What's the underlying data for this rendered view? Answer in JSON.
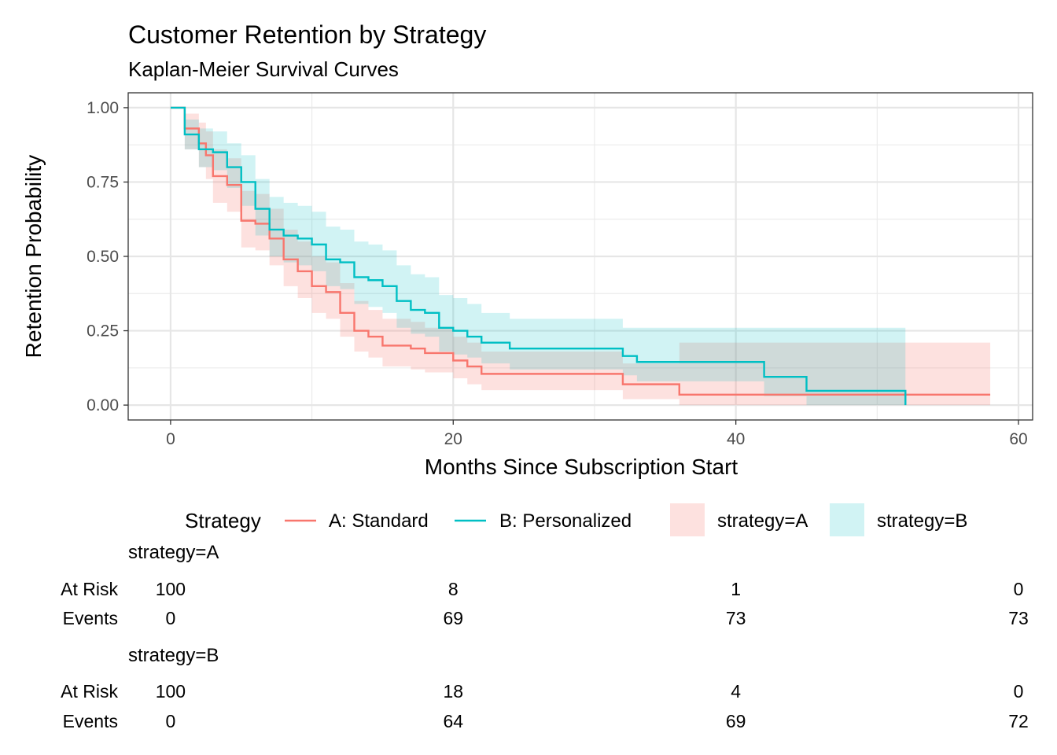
{
  "chart_data": {
    "type": "line",
    "subtype": "kaplan-meier step",
    "title": "Customer Retention by Strategy",
    "subtitle": "Kaplan-Meier Survival Curves",
    "xlabel": "Months Since Subscription Start",
    "ylabel": "Retention Probability",
    "xlim": [
      -3,
      61
    ],
    "ylim": [
      -0.05,
      1.05
    ],
    "xticks": [
      0,
      20,
      40,
      60
    ],
    "xtick_labels": [
      "0",
      "20",
      "40",
      "60"
    ],
    "yticks": [
      0,
      0.25,
      0.5,
      0.75,
      1.0
    ],
    "ytick_labels": [
      "0.00",
      "0.25",
      "0.50",
      "0.75",
      "1.00"
    ],
    "grid": true,
    "legend_position": "bottom",
    "legend": {
      "title": "Strategy",
      "lines": [
        "A: Standard",
        "B: Personalized"
      ],
      "fills": [
        "strategy=A",
        "strategy=B"
      ]
    },
    "series": [
      {
        "name": "A: Standard",
        "color": "#f8766d",
        "x": [
          0,
          1,
          2,
          2.5,
          3,
          4,
          5,
          6,
          7,
          8,
          9,
          10,
          11,
          12,
          13,
          14,
          15,
          17,
          18,
          20,
          21,
          22,
          24,
          30,
          32,
          36,
          40,
          45,
          50,
          58
        ],
        "y": [
          1.0,
          0.93,
          0.88,
          0.84,
          0.77,
          0.74,
          0.62,
          0.61,
          0.56,
          0.49,
          0.45,
          0.4,
          0.38,
          0.31,
          0.25,
          0.23,
          0.2,
          0.19,
          0.175,
          0.15,
          0.13,
          0.105,
          0.105,
          0.105,
          0.07,
          0.035,
          0.035,
          0.035,
          0.035,
          0.035
        ],
        "lower": [
          1.0,
          0.86,
          0.8,
          0.76,
          0.68,
          0.65,
          0.53,
          0.52,
          0.47,
          0.4,
          0.36,
          0.31,
          0.29,
          0.23,
          0.18,
          0.16,
          0.13,
          0.12,
          0.11,
          0.09,
          0.07,
          0.05,
          0.05,
          0.05,
          0.02,
          0.0,
          0.0,
          0.0,
          0.0,
          0.0
        ],
        "upper": [
          1.0,
          0.98,
          0.95,
          0.92,
          0.86,
          0.83,
          0.72,
          0.71,
          0.66,
          0.59,
          0.55,
          0.5,
          0.48,
          0.41,
          0.35,
          0.32,
          0.29,
          0.28,
          0.26,
          0.23,
          0.21,
          0.18,
          0.18,
          0.18,
          0.14,
          0.21,
          0.21,
          0.21,
          0.21,
          0.21
        ]
      },
      {
        "name": "B: Personalized",
        "color": "#00bfc4",
        "x": [
          0,
          1,
          2,
          3,
          4,
          5,
          6,
          7,
          8,
          9,
          10,
          11,
          12,
          13,
          14,
          15,
          16,
          17,
          18,
          19,
          20,
          21,
          22,
          24,
          30,
          32,
          33,
          36,
          42,
          45,
          50,
          52
        ],
        "y": [
          1.0,
          0.91,
          0.86,
          0.85,
          0.8,
          0.75,
          0.66,
          0.59,
          0.57,
          0.56,
          0.54,
          0.49,
          0.48,
          0.43,
          0.42,
          0.4,
          0.35,
          0.32,
          0.31,
          0.26,
          0.25,
          0.23,
          0.21,
          0.19,
          0.19,
          0.165,
          0.145,
          0.145,
          0.095,
          0.048,
          0.048,
          0.0
        ],
        "lower": [
          1.0,
          0.86,
          0.8,
          0.79,
          0.73,
          0.67,
          0.57,
          0.5,
          0.48,
          0.47,
          0.45,
          0.4,
          0.39,
          0.34,
          0.33,
          0.31,
          0.26,
          0.24,
          0.23,
          0.18,
          0.17,
          0.16,
          0.14,
          0.12,
          0.12,
          0.1,
          0.08,
          0.08,
          0.03,
          0.0,
          0.0,
          0.0
        ],
        "upper": [
          1.0,
          0.96,
          0.93,
          0.92,
          0.88,
          0.84,
          0.76,
          0.7,
          0.68,
          0.67,
          0.65,
          0.6,
          0.59,
          0.55,
          0.54,
          0.52,
          0.47,
          0.44,
          0.43,
          0.37,
          0.36,
          0.34,
          0.31,
          0.29,
          0.29,
          0.26,
          0.26,
          0.26,
          0.26,
          0.26,
          0.26,
          0.26
        ]
      }
    ],
    "risk_table": {
      "row_labels": [
        "At Risk",
        "Events"
      ],
      "times": [
        0,
        20,
        40,
        60
      ],
      "groups": [
        {
          "name": "strategy=A",
          "at_risk": [
            "100",
            "8",
            "1",
            "0"
          ],
          "events": [
            "0",
            "69",
            "73",
            "73"
          ]
        },
        {
          "name": "strategy=B",
          "at_risk": [
            "100",
            "18",
            "4",
            "0"
          ],
          "events": [
            "0",
            "64",
            "69",
            "72"
          ]
        }
      ]
    }
  }
}
